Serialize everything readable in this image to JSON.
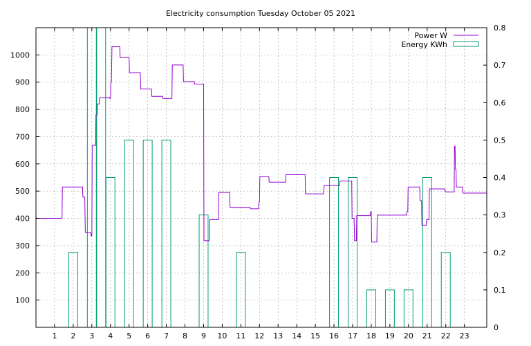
{
  "chart_data": {
    "type": "line",
    "title": "Electricity consumption Tuesday October 05 2021",
    "xlim": [
      0,
      24.2
    ],
    "ylim": [
      0,
      1100
    ],
    "y2lim": [
      0,
      0.8
    ],
    "x_ticks": [
      1,
      2,
      3,
      4,
      5,
      6,
      7,
      8,
      9,
      10,
      11,
      12,
      13,
      14,
      15,
      16,
      17,
      18,
      19,
      20,
      21,
      22,
      23
    ],
    "y_ticks": [
      100,
      200,
      300,
      400,
      500,
      600,
      700,
      800,
      900,
      1000
    ],
    "y2_ticks": [
      0,
      0.1,
      0.2,
      0.3,
      0.4,
      0.5,
      0.6,
      0.7,
      0.8
    ],
    "grid": true,
    "legend_position": "top-right",
    "colors": {
      "power": "#9400d3",
      "energy": "#009e73"
    },
    "series": [
      {
        "name": "Power W",
        "axis": "y",
        "style": "step",
        "points": [
          [
            0.0,
            408
          ],
          [
            0.02,
            400
          ],
          [
            1.4,
            400
          ],
          [
            1.42,
            515
          ],
          [
            2.5,
            515
          ],
          [
            2.52,
            478
          ],
          [
            2.62,
            478
          ],
          [
            2.65,
            348
          ],
          [
            2.95,
            348
          ],
          [
            2.97,
            335
          ],
          [
            3.0,
            335
          ],
          [
            3.02,
            668
          ],
          [
            3.2,
            668
          ],
          [
            3.22,
            780
          ],
          [
            3.28,
            780
          ],
          [
            3.3,
            820
          ],
          [
            3.4,
            820
          ],
          [
            3.42,
            843
          ],
          [
            3.95,
            843
          ],
          [
            3.97,
            840
          ],
          [
            4.0,
            840
          ],
          [
            4.02,
            900
          ],
          [
            4.05,
            900
          ],
          [
            4.08,
            1030
          ],
          [
            4.5,
            1030
          ],
          [
            4.52,
            990
          ],
          [
            5.0,
            990
          ],
          [
            5.02,
            935
          ],
          [
            5.6,
            935
          ],
          [
            5.62,
            875
          ],
          [
            6.2,
            875
          ],
          [
            6.22,
            848
          ],
          [
            6.8,
            848
          ],
          [
            6.82,
            840
          ],
          [
            7.3,
            840
          ],
          [
            7.32,
            963
          ],
          [
            7.9,
            963
          ],
          [
            7.92,
            902
          ],
          [
            8.5,
            902
          ],
          [
            8.52,
            893
          ],
          [
            9.0,
            893
          ],
          [
            9.02,
            318
          ],
          [
            9.3,
            318
          ],
          [
            9.32,
            395
          ],
          [
            9.8,
            395
          ],
          [
            9.82,
            495
          ],
          [
            10.4,
            495
          ],
          [
            10.42,
            440
          ],
          [
            11.5,
            440
          ],
          [
            11.52,
            435
          ],
          [
            11.95,
            435
          ],
          [
            11.97,
            460
          ],
          [
            12.0,
            460
          ],
          [
            12.02,
            553
          ],
          [
            12.5,
            553
          ],
          [
            12.52,
            533
          ],
          [
            13.4,
            533
          ],
          [
            13.42,
            560
          ],
          [
            14.45,
            560
          ],
          [
            14.47,
            490
          ],
          [
            15.45,
            490
          ],
          [
            15.47,
            520
          ],
          [
            16.3,
            520
          ],
          [
            16.32,
            537
          ],
          [
            16.95,
            537
          ],
          [
            16.97,
            400
          ],
          [
            17.08,
            400
          ],
          [
            17.1,
            318
          ],
          [
            17.2,
            318
          ],
          [
            17.22,
            410
          ],
          [
            17.95,
            410
          ],
          [
            17.97,
            425
          ],
          [
            18.0,
            425
          ],
          [
            18.02,
            313
          ],
          [
            18.3,
            313
          ],
          [
            18.32,
            412
          ],
          [
            19.9,
            412
          ],
          [
            19.92,
            425
          ],
          [
            19.96,
            425
          ],
          [
            19.98,
            515
          ],
          [
            20.6,
            515
          ],
          [
            20.62,
            465
          ],
          [
            20.7,
            465
          ],
          [
            20.72,
            375
          ],
          [
            20.95,
            375
          ],
          [
            20.97,
            395
          ],
          [
            21.1,
            395
          ],
          [
            21.12,
            508
          ],
          [
            21.95,
            508
          ],
          [
            21.97,
            497
          ],
          [
            22.45,
            497
          ],
          [
            22.47,
            665
          ],
          [
            22.5,
            665
          ],
          [
            22.52,
            580
          ],
          [
            22.55,
            580
          ],
          [
            22.57,
            515
          ],
          [
            22.9,
            515
          ],
          [
            22.92,
            493
          ],
          [
            24.2,
            493
          ]
        ]
      },
      {
        "name": "Energy KWh",
        "axis": "y2",
        "style": "bar",
        "points": [
          [
            2,
            0.2
          ],
          [
            3,
            0.9
          ],
          [
            3.5,
            0.9
          ],
          [
            4,
            0.4
          ],
          [
            5,
            0.5
          ],
          [
            6,
            0.5
          ],
          [
            7,
            0.5
          ],
          [
            9,
            0.3
          ],
          [
            11,
            0.2
          ],
          [
            16,
            0.4
          ],
          [
            17,
            0.4
          ],
          [
            18,
            0.1
          ],
          [
            19,
            0.1
          ],
          [
            20,
            0.1
          ],
          [
            21,
            0.4
          ],
          [
            22,
            0.2
          ]
        ]
      }
    ]
  }
}
